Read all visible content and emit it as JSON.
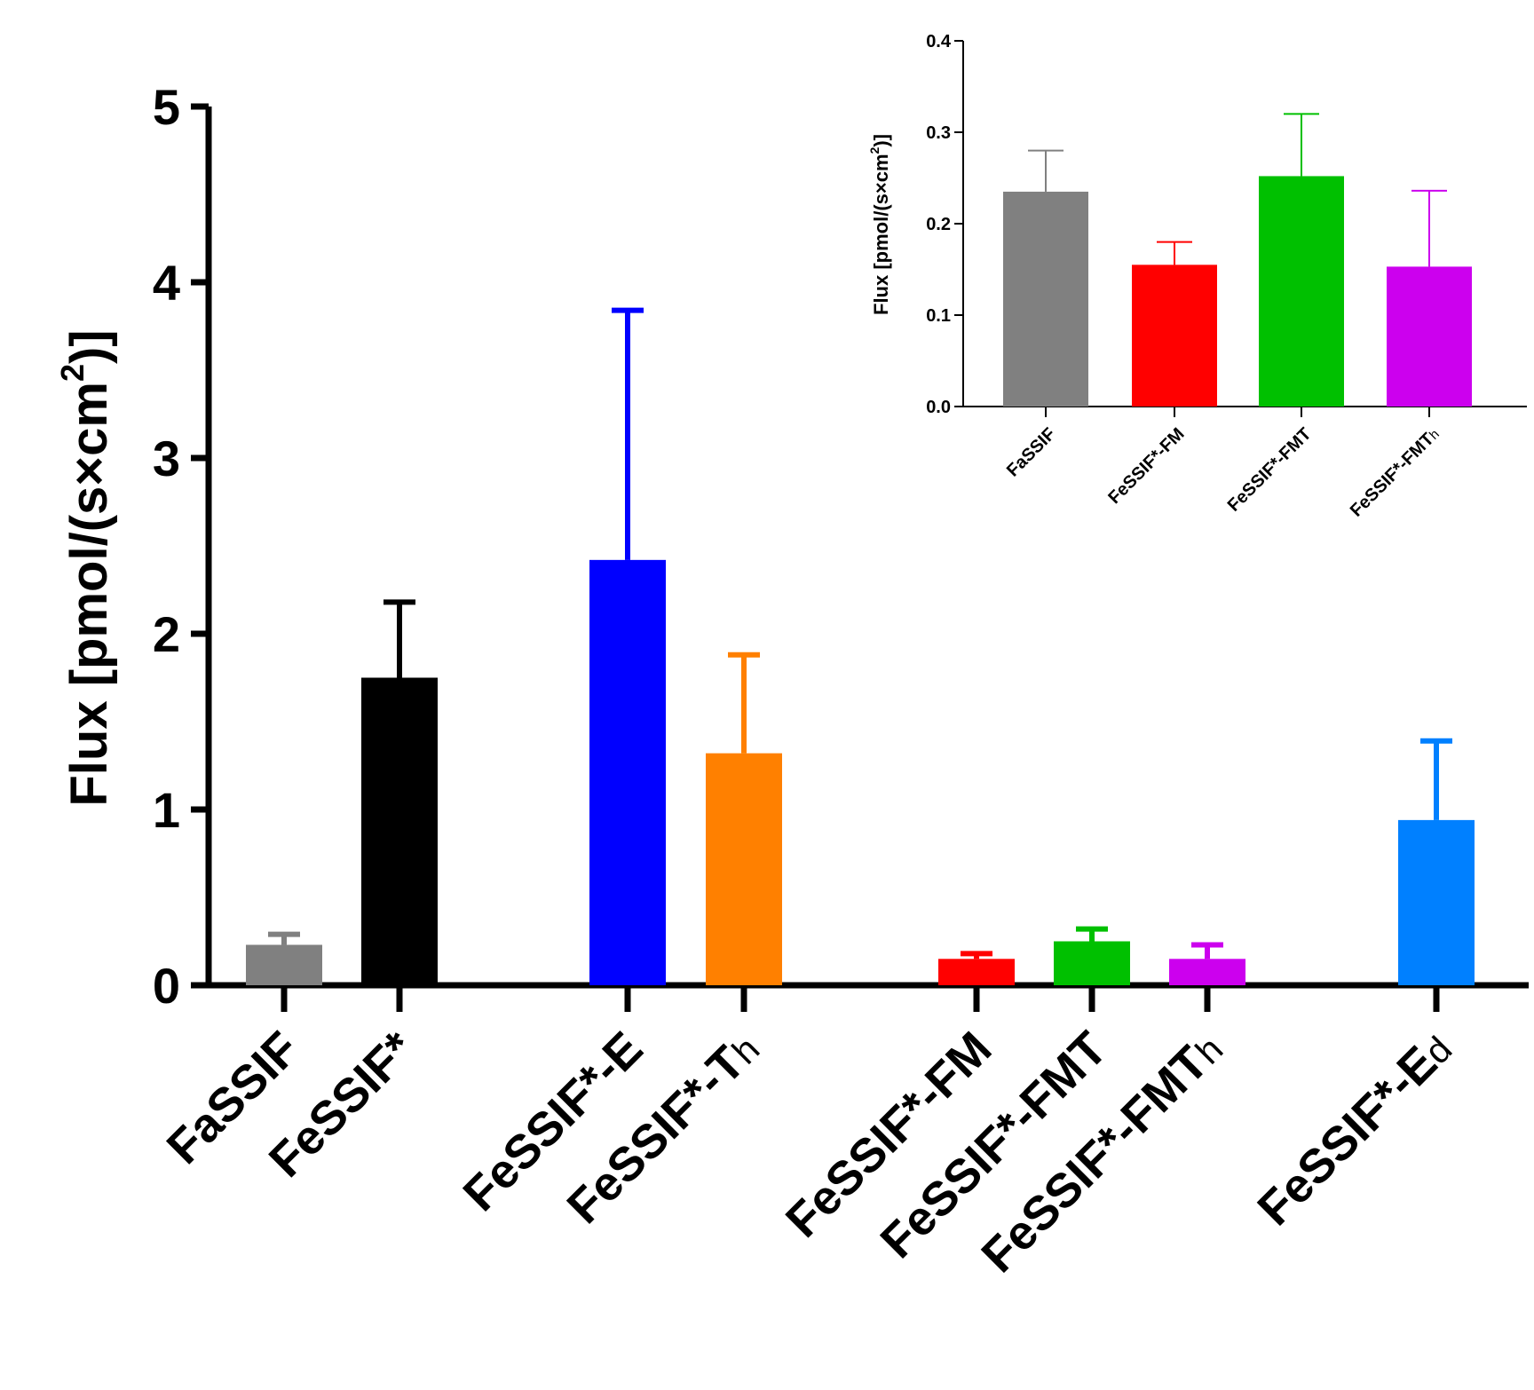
{
  "chart_data": [
    {
      "type": "bar",
      "ylabel_main": "Flux [pmol/(s×cm",
      "ylabel_sup": "2",
      "ylabel_end": ")]",
      "ylim": [
        0,
        5
      ],
      "yticks": [
        "0",
        "1",
        "2",
        "3",
        "4",
        "5"
      ],
      "categories": [
        {
          "base": "FaSSIF",
          "sub": "",
          "value": 0.23,
          "error": 0.06,
          "color": "#808080"
        },
        {
          "base": "FeSSIF*",
          "sub": "",
          "value": 1.75,
          "error": 0.43,
          "color": "#000000"
        },
        {
          "base": "FeSSIF*-E",
          "sub": "",
          "value": 2.42,
          "error": 1.42,
          "color": "#0000ff"
        },
        {
          "base": "FeSSIF*-T",
          "sub": "h",
          "value": 1.32,
          "error": 0.56,
          "color": "#ff8000"
        },
        {
          "base": "FeSSIF*-FM",
          "sub": "",
          "value": 0.15,
          "error": 0.03,
          "color": "#ff0000"
        },
        {
          "base": "FeSSIF*-FMT",
          "sub": "",
          "value": 0.25,
          "error": 0.07,
          "color": "#00c000"
        },
        {
          "base": "FeSSIF*-FMT",
          "sub": "h",
          "value": 0.15,
          "error": 0.08,
          "color": "#cc00ee"
        },
        {
          "base": "FeSSIF*-E",
          "sub": "d",
          "value": 0.94,
          "error": 0.45,
          "color": "#0080ff"
        }
      ]
    },
    {
      "type": "bar",
      "inset": true,
      "ylabel_main": "Flux [pmol/(s×cm",
      "ylabel_sup": "2",
      "ylabel_end": ")]",
      "ylim": [
        0,
        0.4
      ],
      "yticks": [
        "0.0",
        "0.1",
        "0.2",
        "0.3",
        "0.4"
      ],
      "categories": [
        {
          "base": "FaSSIF",
          "sub": "",
          "value": 0.235,
          "error": 0.045,
          "color": "#808080"
        },
        {
          "base": "FeSSIF*-FM",
          "sub": "",
          "value": 0.155,
          "error": 0.025,
          "color": "#ff0000"
        },
        {
          "base": "FeSSIF*-FMT",
          "sub": "",
          "value": 0.252,
          "error": 0.068,
          "color": "#00c000"
        },
        {
          "base": "FeSSIF*-FMT",
          "sub": "h",
          "value": 0.153,
          "error": 0.083,
          "color": "#cc00ee"
        }
      ]
    }
  ]
}
